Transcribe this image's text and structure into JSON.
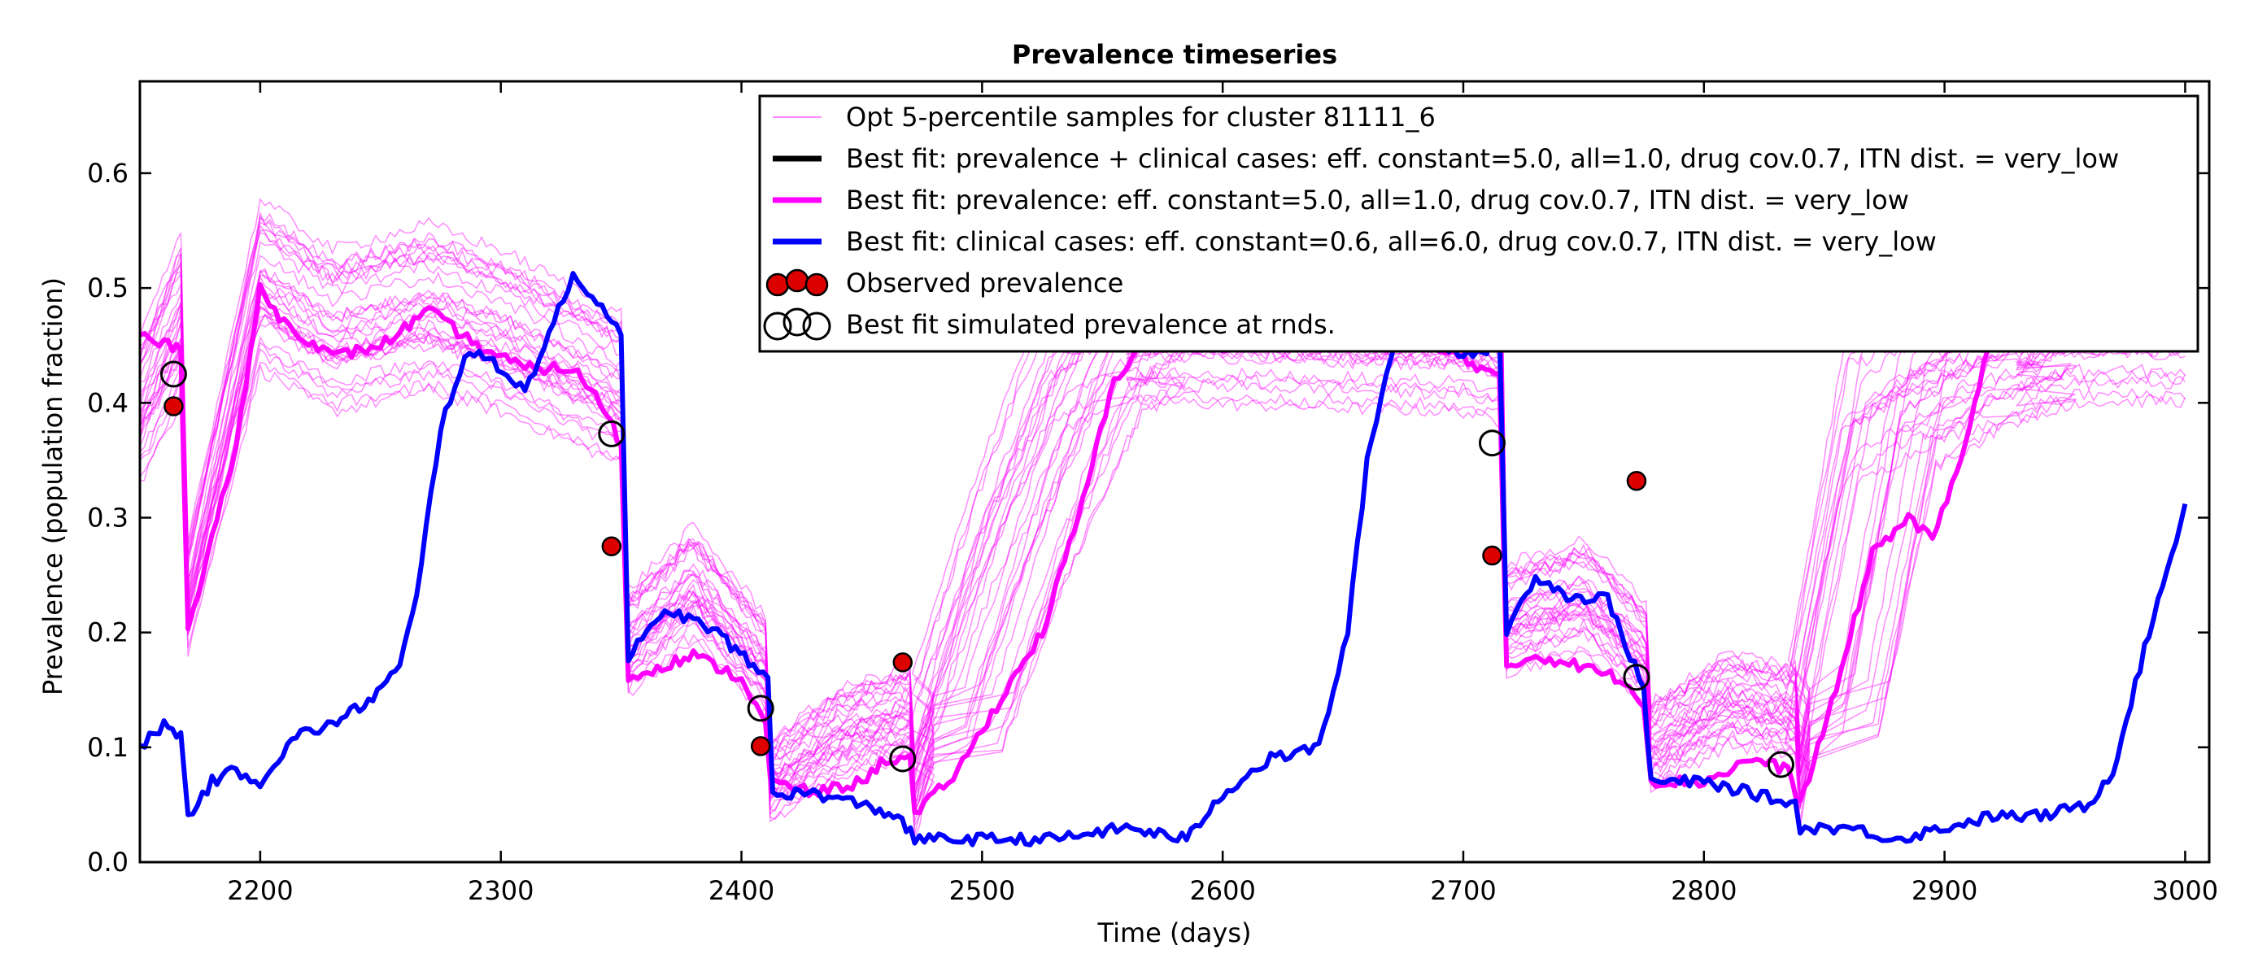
{
  "chart_data": {
    "type": "line",
    "title": "Prevalence timeseries",
    "xlabel": "Time (days)",
    "ylabel": "Prevalence (population fraction)",
    "xlim": [
      2150,
      3010
    ],
    "ylim": [
      0.0,
      0.68
    ],
    "xticks": [
      2200,
      2300,
      2400,
      2500,
      2600,
      2700,
      2800,
      2900,
      3000
    ],
    "yticks": [
      0.0,
      0.1,
      0.2,
      0.3,
      0.4,
      0.5,
      0.6
    ],
    "xtick_labels": [
      "2200",
      "2300",
      "2400",
      "2500",
      "2600",
      "2700",
      "2800",
      "2900",
      "3000"
    ],
    "ytick_labels": [
      "0.0",
      "0.1",
      "0.2",
      "0.3",
      "0.4",
      "0.5",
      "0.6"
    ],
    "grid": false,
    "legend_position": "top-right",
    "legend": [
      "Opt 5-percentile samples for cluster 81111_6",
      "Best fit: prevalence + clinical cases: eff. constant=5.0, all=1.0, drug cov.0.7, ITN dist. = very_low",
      "Best fit: prevalence: eff. constant=5.0, all=1.0, drug cov.0.7, ITN dist. = very_low",
      "Best fit: clinical cases: eff. constant=0.6, all=6.0, drug cov.0.7, ITN dist. = very_low",
      "Observed prevalence",
      "Best fit simulated prevalence at rnds."
    ],
    "colors": {
      "samples": "#ff00ff",
      "best_combined": "#000000",
      "best_prevalence": "#ff00ff",
      "best_clinical": "#0000ff",
      "observed": "#dd0000",
      "simulated_marker": "#000000"
    },
    "series": [
      {
        "name": "Best fit: prevalence: eff. constant=5.0, all=1.0, drug cov.0.7, ITN dist. = very_low",
        "color": "#ff00ff",
        "points": [
          [
            2150,
            0.46
          ],
          [
            2160,
            0.45
          ],
          [
            2167,
            0.45
          ],
          [
            2170,
            0.2
          ],
          [
            2178,
            0.27
          ],
          [
            2190,
            0.36
          ],
          [
            2200,
            0.5
          ],
          [
            2210,
            0.47
          ],
          [
            2230,
            0.44
          ],
          [
            2250,
            0.45
          ],
          [
            2270,
            0.48
          ],
          [
            2290,
            0.45
          ],
          [
            2310,
            0.43
          ],
          [
            2330,
            0.43
          ],
          [
            2345,
            0.39
          ],
          [
            2350,
            0.36
          ],
          [
            2353,
            0.16
          ],
          [
            2365,
            0.17
          ],
          [
            2380,
            0.18
          ],
          [
            2400,
            0.16
          ],
          [
            2410,
            0.12
          ],
          [
            2412,
            0.07
          ],
          [
            2430,
            0.06
          ],
          [
            2450,
            0.07
          ],
          [
            2460,
            0.09
          ],
          [
            2470,
            0.09
          ],
          [
            2472,
            0.04
          ],
          [
            2490,
            0.08
          ],
          [
            2510,
            0.15
          ],
          [
            2525,
            0.2
          ],
          [
            2540,
            0.3
          ],
          [
            2555,
            0.42
          ],
          [
            2570,
            0.46
          ],
          [
            2600,
            0.45
          ],
          [
            2640,
            0.46
          ],
          [
            2680,
            0.45
          ],
          [
            2700,
            0.44
          ],
          [
            2715,
            0.42
          ],
          [
            2718,
            0.17
          ],
          [
            2730,
            0.18
          ],
          [
            2750,
            0.17
          ],
          [
            2765,
            0.16
          ],
          [
            2775,
            0.14
          ],
          [
            2778,
            0.07
          ],
          [
            2800,
            0.07
          ],
          [
            2820,
            0.09
          ],
          [
            2835,
            0.08
          ],
          [
            2840,
            0.05
          ],
          [
            2855,
            0.15
          ],
          [
            2870,
            0.27
          ],
          [
            2885,
            0.3
          ],
          [
            2895,
            0.28
          ],
          [
            2905,
            0.34
          ],
          [
            2920,
            0.46
          ],
          [
            2940,
            0.45
          ],
          [
            2960,
            0.46
          ],
          [
            3000,
            0.45
          ]
        ]
      },
      {
        "name": "Best fit: clinical cases: eff. constant=0.6, all=6.0, drug cov.0.7, ITN dist. = very_low",
        "color": "#0000ff",
        "points": [
          [
            2150,
            0.1
          ],
          [
            2160,
            0.12
          ],
          [
            2167,
            0.11
          ],
          [
            2170,
            0.04
          ],
          [
            2180,
            0.07
          ],
          [
            2190,
            0.08
          ],
          [
            2200,
            0.07
          ],
          [
            2215,
            0.11
          ],
          [
            2230,
            0.12
          ],
          [
            2245,
            0.14
          ],
          [
            2258,
            0.17
          ],
          [
            2265,
            0.23
          ],
          [
            2275,
            0.38
          ],
          [
            2285,
            0.44
          ],
          [
            2295,
            0.44
          ],
          [
            2310,
            0.41
          ],
          [
            2320,
            0.46
          ],
          [
            2330,
            0.51
          ],
          [
            2340,
            0.49
          ],
          [
            2350,
            0.46
          ],
          [
            2353,
            0.18
          ],
          [
            2370,
            0.22
          ],
          [
            2390,
            0.2
          ],
          [
            2405,
            0.17
          ],
          [
            2411,
            0.16
          ],
          [
            2413,
            0.06
          ],
          [
            2430,
            0.06
          ],
          [
            2450,
            0.05
          ],
          [
            2465,
            0.04
          ],
          [
            2472,
            0.02
          ],
          [
            2490,
            0.02
          ],
          [
            2510,
            0.02
          ],
          [
            2530,
            0.02
          ],
          [
            2560,
            0.03
          ],
          [
            2585,
            0.02
          ],
          [
            2600,
            0.06
          ],
          [
            2620,
            0.09
          ],
          [
            2640,
            0.1
          ],
          [
            2652,
            0.2
          ],
          [
            2660,
            0.35
          ],
          [
            2672,
            0.46
          ],
          [
            2690,
            0.45
          ],
          [
            2708,
            0.44
          ],
          [
            2715,
            0.47
          ],
          [
            2718,
            0.2
          ],
          [
            2730,
            0.25
          ],
          [
            2745,
            0.23
          ],
          [
            2760,
            0.23
          ],
          [
            2775,
            0.15
          ],
          [
            2778,
            0.07
          ],
          [
            2800,
            0.07
          ],
          [
            2820,
            0.06
          ],
          [
            2838,
            0.05
          ],
          [
            2840,
            0.03
          ],
          [
            2860,
            0.03
          ],
          [
            2880,
            0.02
          ],
          [
            2900,
            0.03
          ],
          [
            2920,
            0.04
          ],
          [
            2940,
            0.04
          ],
          [
            2960,
            0.05
          ],
          [
            2970,
            0.08
          ],
          [
            2985,
            0.2
          ],
          [
            3000,
            0.31
          ]
        ]
      },
      {
        "name": "Opt 5-percentile samples for cluster 81111_6",
        "color": "#ff00ff",
        "count_shown": 30,
        "points": [
          [
            2150,
            0.38
          ],
          [
            2167,
            0.46
          ],
          [
            2170,
            0.22
          ],
          [
            2200,
            0.49
          ],
          [
            2230,
            0.45
          ],
          [
            2270,
            0.47
          ],
          [
            2300,
            0.45
          ],
          [
            2330,
            0.42
          ],
          [
            2350,
            0.4
          ],
          [
            2353,
            0.18
          ],
          [
            2380,
            0.23
          ],
          [
            2410,
            0.16
          ],
          [
            2412,
            0.06
          ],
          [
            2440,
            0.1
          ],
          [
            2470,
            0.12
          ],
          [
            2472,
            0.05
          ],
          [
            2510,
            0.28
          ],
          [
            2540,
            0.43
          ],
          [
            2560,
            0.46
          ],
          [
            2700,
            0.45
          ],
          [
            2716,
            0.44
          ],
          [
            2718,
            0.2
          ],
          [
            2750,
            0.22
          ],
          [
            2776,
            0.17
          ],
          [
            2778,
            0.09
          ],
          [
            2810,
            0.13
          ],
          [
            2838,
            0.12
          ],
          [
            2840,
            0.06
          ],
          [
            2870,
            0.38
          ],
          [
            2900,
            0.42
          ],
          [
            2950,
            0.46
          ],
          [
            3000,
            0.46
          ]
        ]
      }
    ],
    "observed_prevalence": [
      [
        2164,
        0.397
      ],
      [
        2346,
        0.275
      ],
      [
        2408,
        0.101
      ],
      [
        2467,
        0.174
      ],
      [
        2712,
        0.267
      ],
      [
        2772,
        0.332
      ]
    ],
    "simulated_prevalence_at_rnds": [
      [
        2164,
        0.425
      ],
      [
        2346,
        0.373
      ],
      [
        2408,
        0.134
      ],
      [
        2467,
        0.09
      ],
      [
        2712,
        0.365
      ],
      [
        2772,
        0.161
      ],
      [
        2832,
        0.085
      ]
    ]
  }
}
